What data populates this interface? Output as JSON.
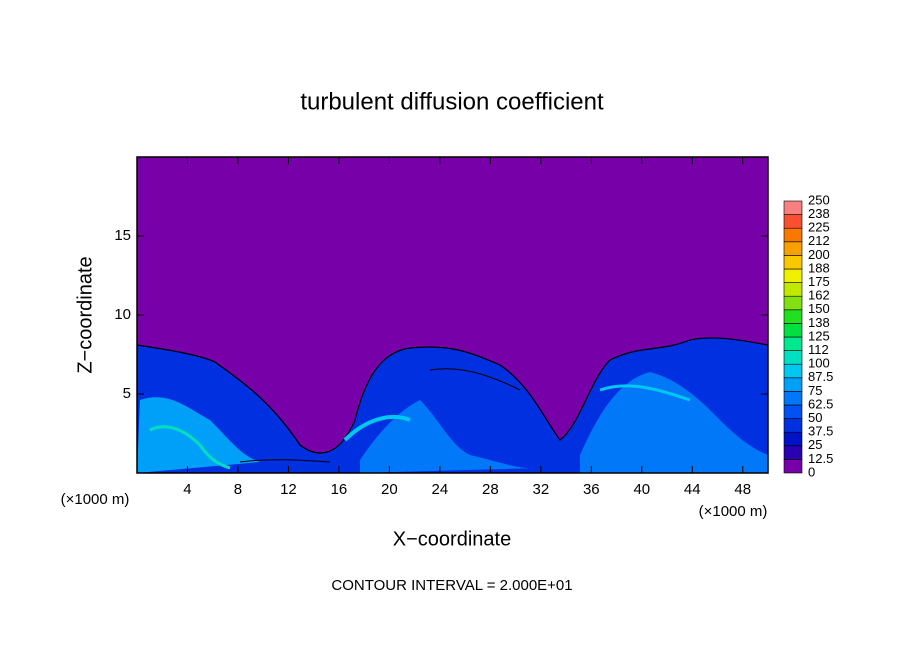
{
  "chart_data": {
    "type": "contour",
    "title": "turbulent diffusion coefficient",
    "x_label": "X−coordinate",
    "y_label": "Z−coordinate",
    "x_unit_label": "(×1000 m)",
    "footnote": "CONTOUR INTERVAL = 2.000E+01",
    "xlim": [
      0,
      50
    ],
    "xticks": [
      4,
      8,
      12,
      16,
      20,
      24,
      28,
      32,
      36,
      40,
      44,
      48
    ],
    "ylim": [
      0,
      20
    ],
    "yticks": [
      5,
      10,
      15
    ],
    "colorbar": {
      "levels": [
        0,
        12.5,
        25,
        37.5,
        50,
        62.5,
        75,
        87.5,
        100,
        112,
        125,
        138,
        150,
        162,
        175,
        188,
        200,
        212,
        225,
        238,
        250
      ],
      "colors": [
        "#7800a8",
        "#2a00b0",
        "#0012c8",
        "#0030e0",
        "#0052f0",
        "#0078f8",
        "#00a0f8",
        "#00c8f0",
        "#00e0c0",
        "#00e890",
        "#00e040",
        "#20e020",
        "#80e010",
        "#c0e800",
        "#f0f000",
        "#f8c800",
        "#f8a000",
        "#f87800",
        "#f85030",
        "#f88080"
      ]
    }
  }
}
